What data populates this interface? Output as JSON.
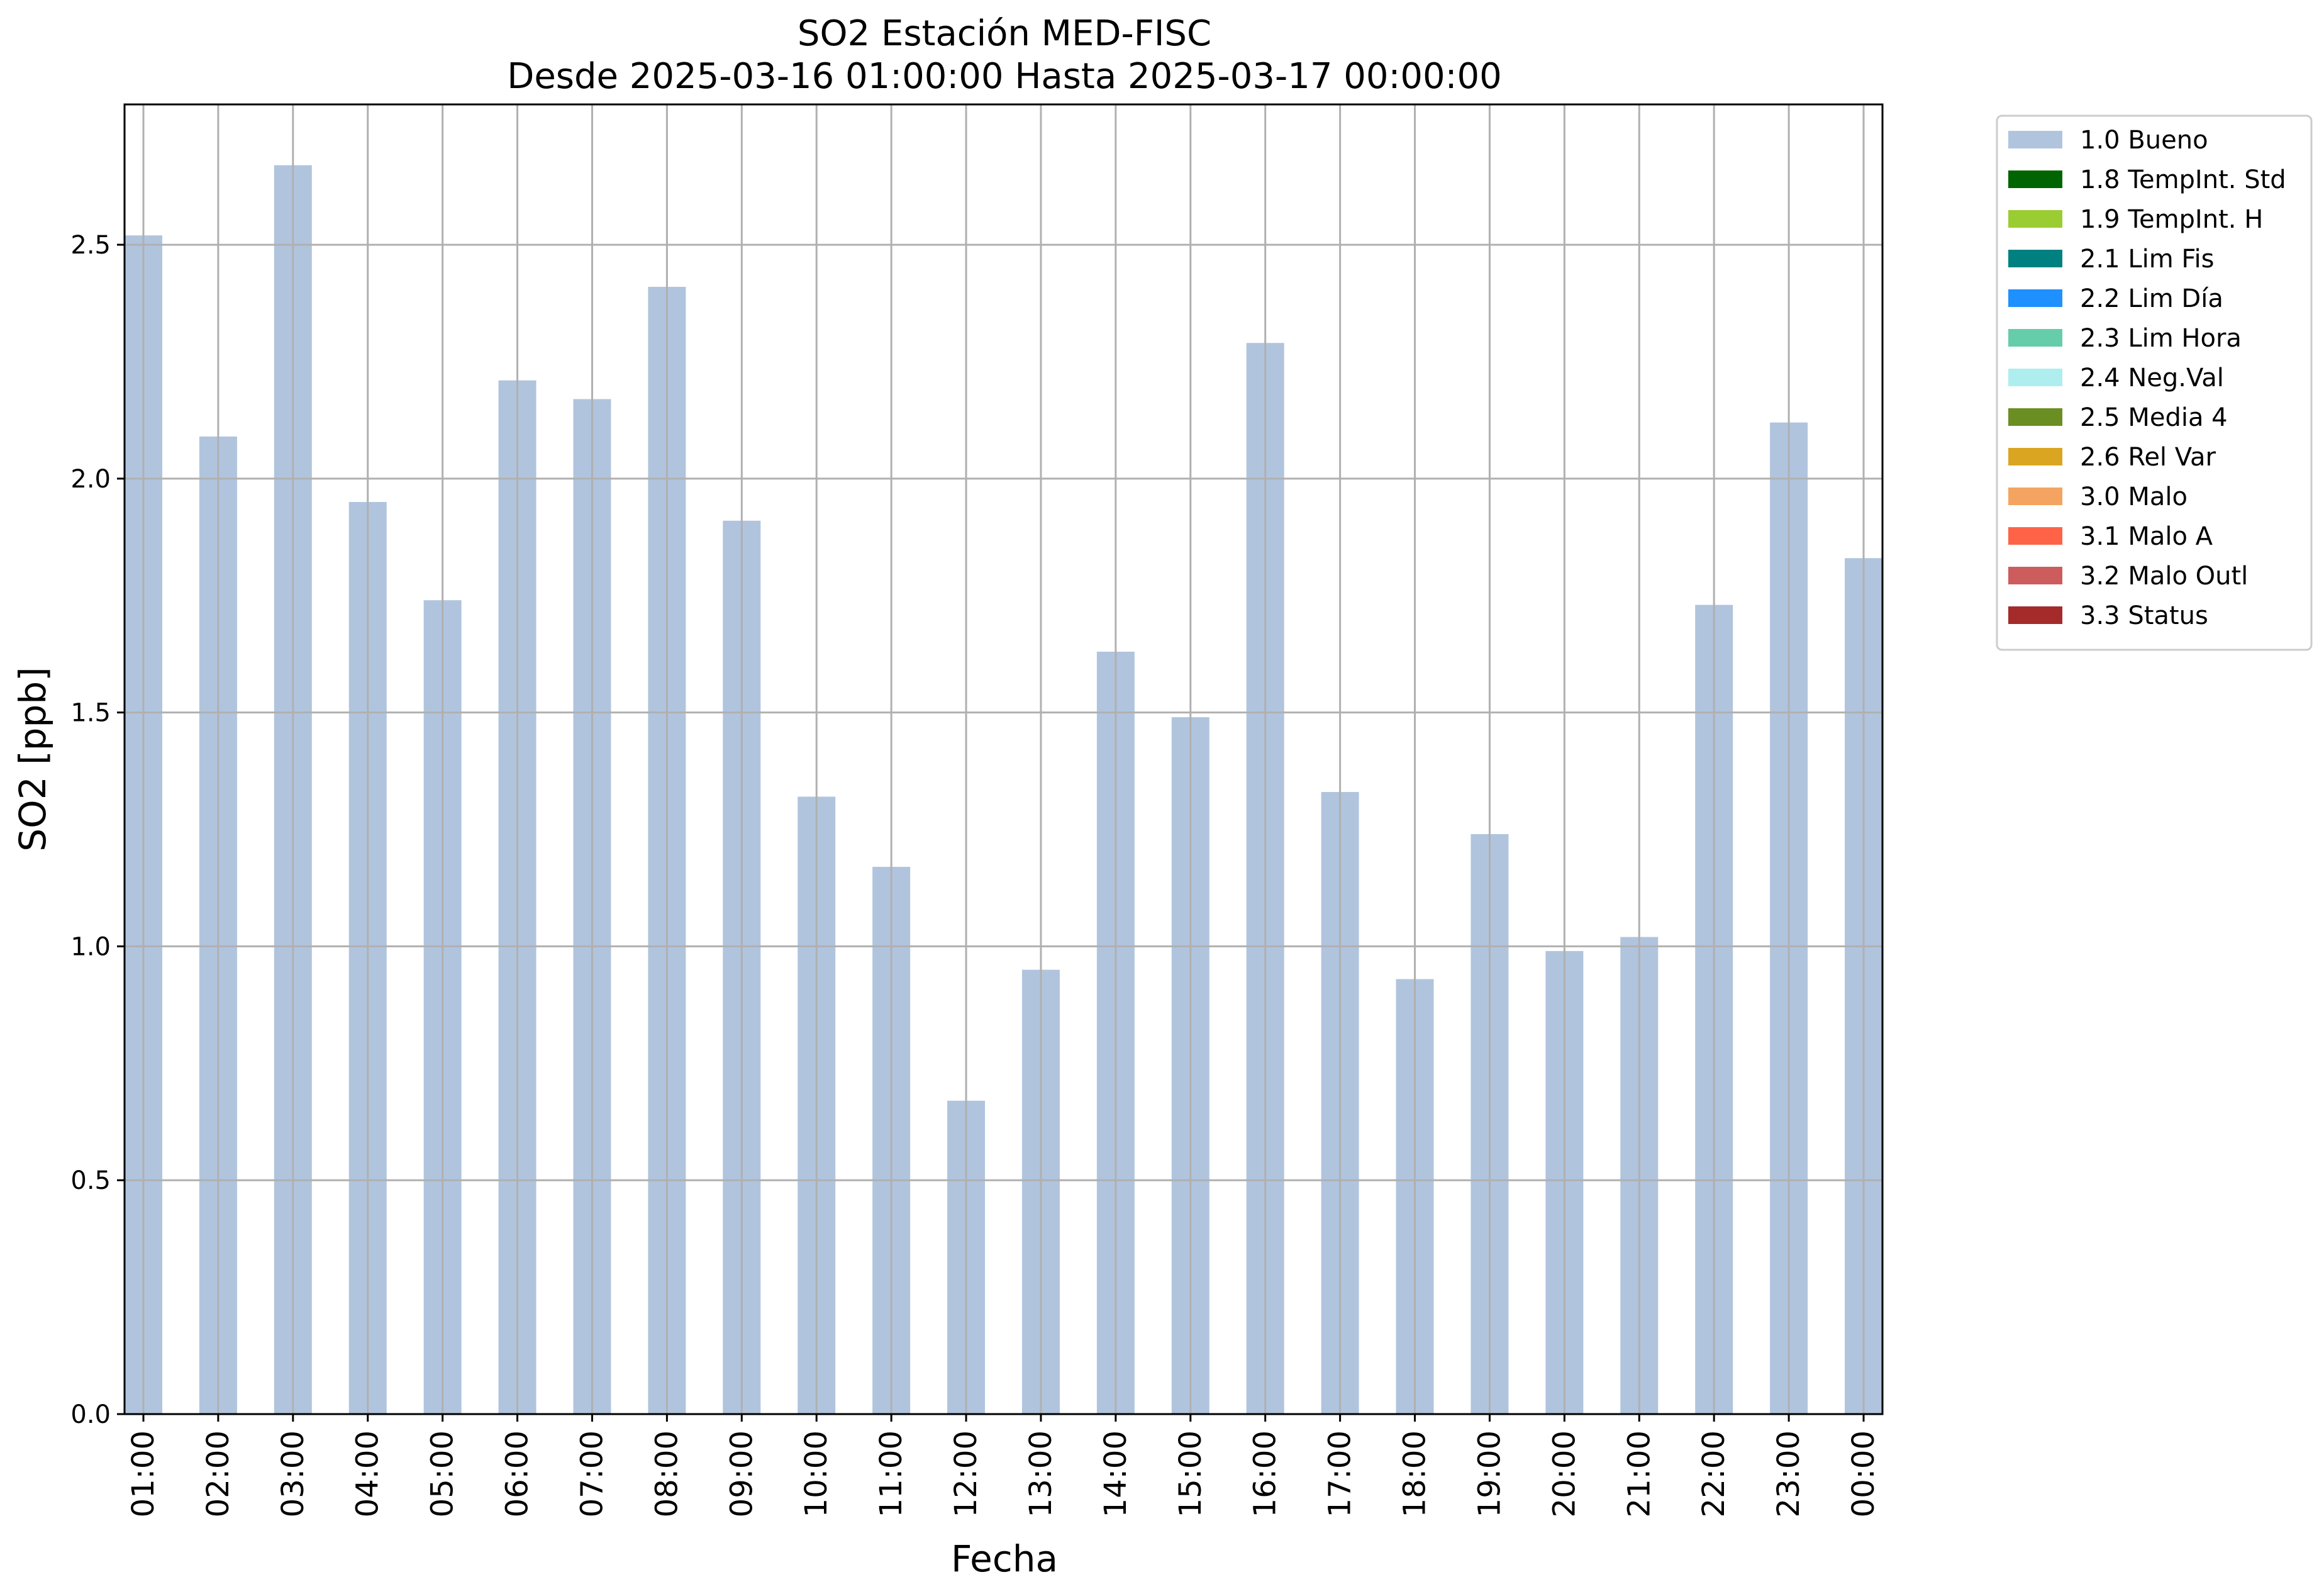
{
  "chart_data": {
    "type": "bar",
    "title": "SO2 Estación MED-FISC",
    "subtitle": "Desde 2025-03-16 01:00:00 Hasta 2025-03-17 00:00:00",
    "xlabel": "Fecha",
    "ylabel": "SO2 [ppb]",
    "ylim": [
      0,
      2.8
    ],
    "yticks": [
      "0.0",
      "0.5",
      "1.0",
      "1.5",
      "2.0",
      "2.5"
    ],
    "grid": true,
    "legend_position": "outside-top-right",
    "categories": [
      "01:00",
      "02:00",
      "03:00",
      "04:00",
      "05:00",
      "06:00",
      "07:00",
      "08:00",
      "09:00",
      "10:00",
      "11:00",
      "12:00",
      "13:00",
      "14:00",
      "15:00",
      "16:00",
      "17:00",
      "18:00",
      "19:00",
      "20:00",
      "21:00",
      "22:00",
      "23:00",
      "00:00"
    ],
    "series": [
      {
        "name": "1.0 Bueno",
        "color": "#b0c4de",
        "values": [
          2.52,
          2.09,
          2.67,
          1.95,
          1.74,
          2.21,
          2.17,
          2.41,
          1.91,
          1.32,
          1.17,
          0.67,
          0.95,
          1.63,
          1.49,
          2.29,
          1.33,
          0.93,
          1.24,
          0.99,
          1.02,
          1.73,
          2.12,
          1.83
        ]
      }
    ],
    "legend": [
      {
        "label": "1.0 Bueno",
        "color": "#b0c4de"
      },
      {
        "label": "1.8 TempInt. Std",
        "color": "#006400"
      },
      {
        "label": "1.9 TempInt. H",
        "color": "#9acd32"
      },
      {
        "label": "2.1 Lim Fis",
        "color": "#008080"
      },
      {
        "label": "2.2 Lim Día",
        "color": "#1e90ff"
      },
      {
        "label": "2.3 Lim Hora",
        "color": "#66cdaa"
      },
      {
        "label": "2.4 Neg.Val",
        "color": "#afeeee"
      },
      {
        "label": "2.5 Media 4",
        "color": "#6b8e23"
      },
      {
        "label": "2.6 Rel Var",
        "color": "#daa520"
      },
      {
        "label": "3.0 Malo",
        "color": "#f4a460"
      },
      {
        "label": "3.1 Malo A",
        "color": "#ff6347"
      },
      {
        "label": "3.2 Malo Outl",
        "color": "#cd5c5c"
      },
      {
        "label": "3.3 Status",
        "color": "#a52a2a"
      }
    ]
  }
}
